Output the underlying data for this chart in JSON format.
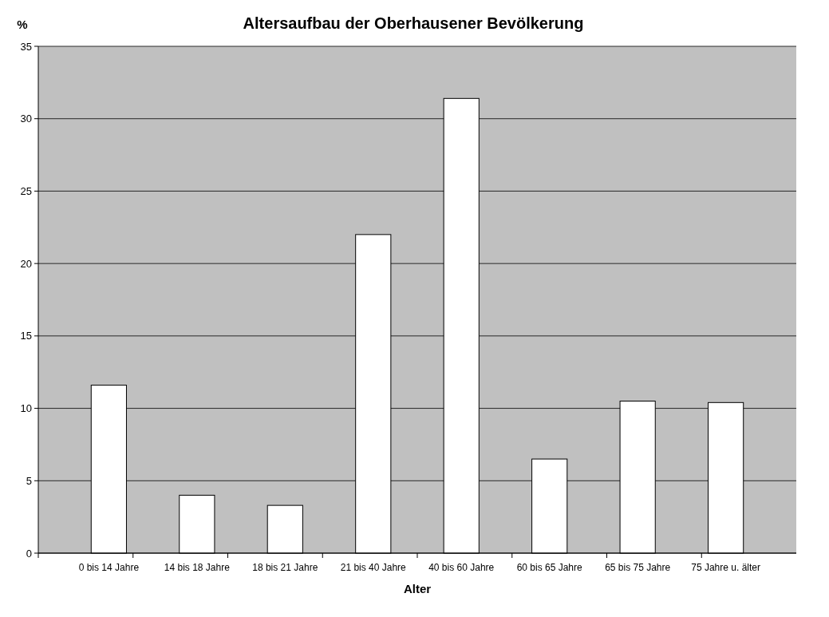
{
  "chart_data": {
    "type": "bar",
    "title": "Altersaufbau der Oberhausener Bevölkerung",
    "xlabel": "Alter",
    "ylabel": "%",
    "categories": [
      "0 bis 14 Jahre",
      "14 bis 18 Jahre",
      "18 bis 21 Jahre",
      "21 bis 40 Jahre",
      "40 bis 60 Jahre",
      "60 bis 65 Jahre",
      "65 bis 75 Jahre",
      "75 Jahre u. älter"
    ],
    "values": [
      11.6,
      4.0,
      3.3,
      22.0,
      31.4,
      6.5,
      10.5,
      10.4
    ],
    "color": "#ffffff",
    "ylim": [
      0,
      35
    ],
    "yticks": [
      0,
      5,
      10,
      15,
      20,
      25,
      30,
      35
    ],
    "grid": "y"
  }
}
